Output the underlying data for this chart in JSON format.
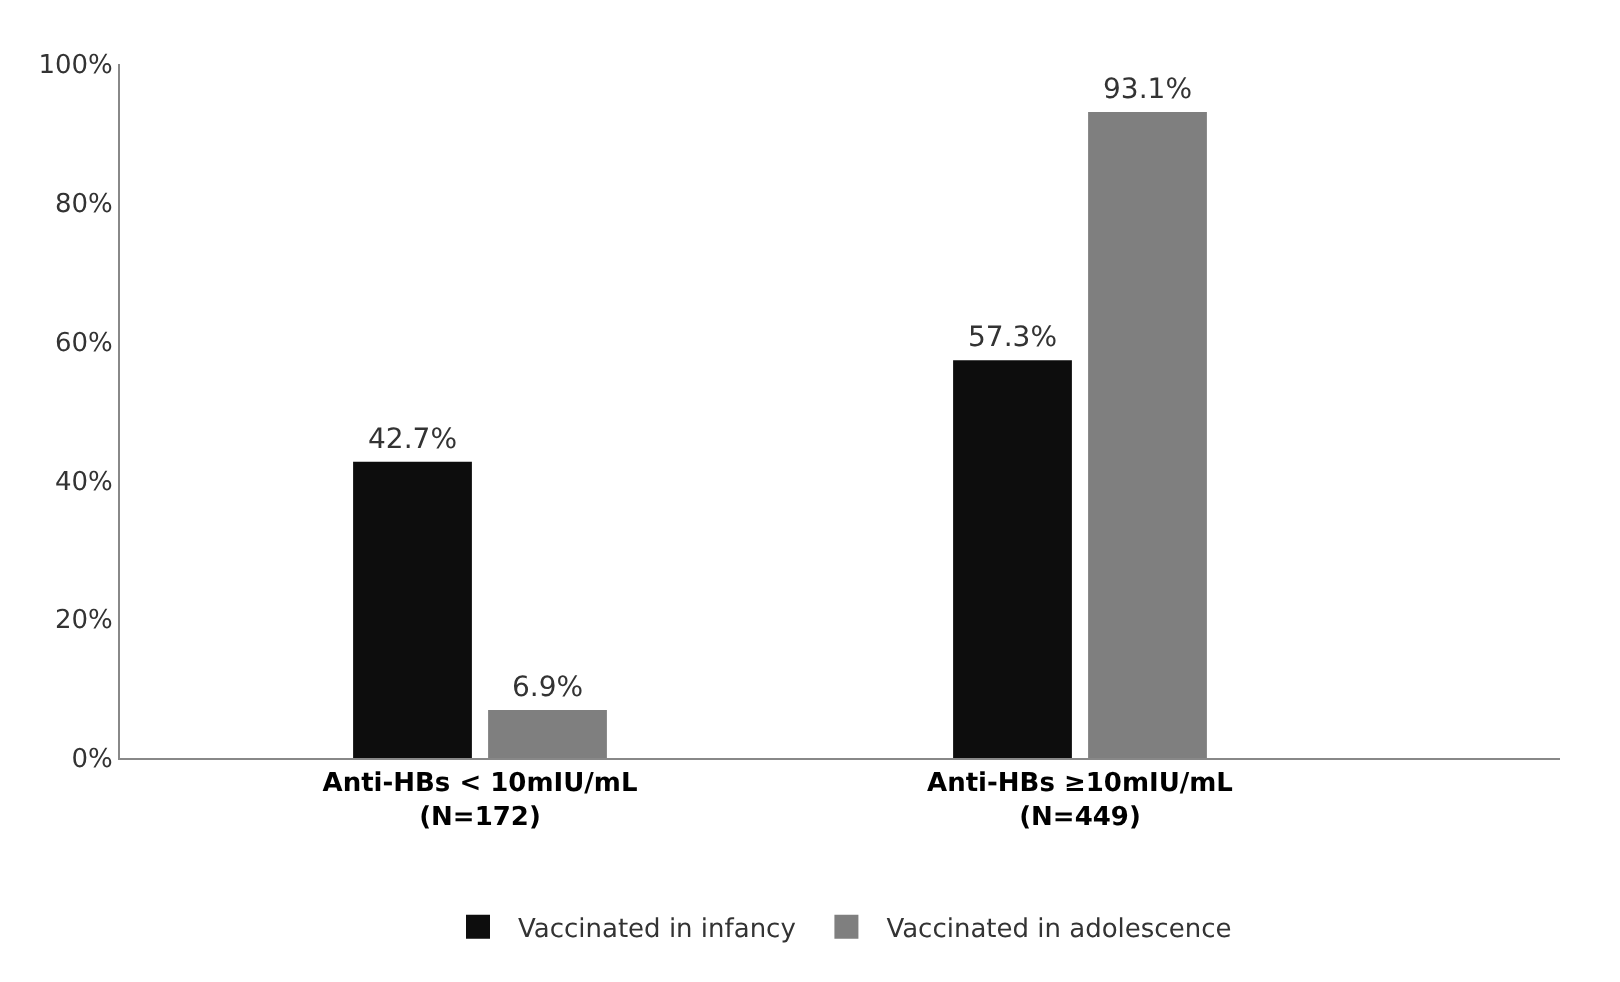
{
  "chart_data": {
    "type": "bar",
    "categories": [
      "Anti-HBs < 10mIU/mL\n(N=172)",
      "Anti-HBs ≥10mIU/mL\n(N=449)"
    ],
    "series": [
      {
        "name": "Vaccinated in infancy",
        "color": "#0d0d0d",
        "values": [
          42.7,
          57.3
        ],
        "value_labels": [
          "42.7%",
          "57.3%"
        ]
      },
      {
        "name": "Vaccinated in adolescence",
        "color": "#7f7f7f",
        "values": [
          6.9,
          93.1
        ],
        "value_labels": [
          "6.9%",
          "93.1%"
        ]
      }
    ],
    "ylim": [
      0,
      100
    ],
    "yticks": [
      {
        "value": 0,
        "label": "0%"
      },
      {
        "value": 20,
        "label": "20%"
      },
      {
        "value": 40,
        "label": "40%"
      },
      {
        "value": 60,
        "label": "60%"
      },
      {
        "value": 80,
        "label": "80%"
      },
      {
        "value": 100,
        "label": "100%"
      }
    ],
    "legend": "bottom"
  }
}
